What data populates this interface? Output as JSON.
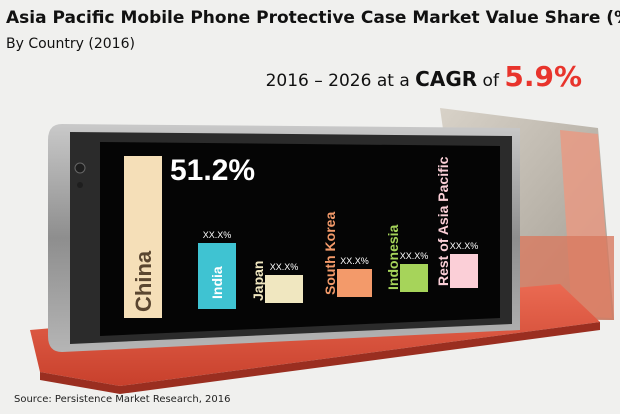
{
  "header": {
    "title": "Asia Pacific Mobile Phone Protective Case Market Value Share (%)",
    "subtitle": "By Country (2016)"
  },
  "cagr": {
    "period": "2016 – 2026",
    "at_a": "at a",
    "label": "CAGR",
    "of": "of",
    "value": "5.9%"
  },
  "source": "Source: Persistence Market Research, 2016",
  "colors": {
    "cagr_value": "#e8342c",
    "case_red": "#e0523a",
    "screen": "#050505"
  },
  "chart_data": {
    "type": "bar",
    "title": "Asia Pacific Mobile Phone Protective Case Market Value Share (%)",
    "subtitle": "By Country (2016)",
    "categories": [
      "China",
      "India",
      "Japan",
      "South Korea",
      "Indonesia",
      "Rest of Asia Pacific"
    ],
    "values": [
      51.2,
      null,
      null,
      null,
      null,
      null
    ],
    "value_labels": [
      "51.2%",
      "XX.X%",
      "XX.X%",
      "XX.X%",
      "XX.X%",
      "XX.X%"
    ],
    "bar_colors": [
      "#f5dfb8",
      "#3fc3d2",
      "#f0e7c0",
      "#f39a6a",
      "#a6d45a",
      "#fbcfd7"
    ],
    "relative_heights": [
      1.0,
      0.41,
      0.17,
      0.17,
      0.17,
      0.21
    ],
    "xlabel": "",
    "ylabel": "",
    "grid": false,
    "legend": "none"
  }
}
